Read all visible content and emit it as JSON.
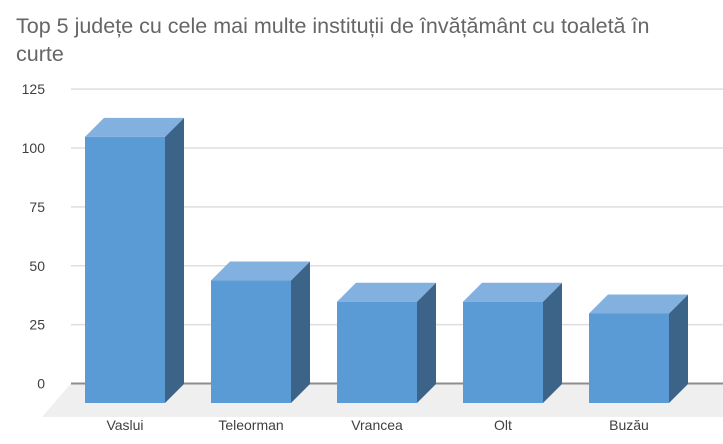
{
  "title_lines": {
    "line1": "Top 5 județe cu cele mai multe instituții de învățământ cu toaletă în",
    "line2": "curte"
  },
  "chart_data": {
    "type": "bar",
    "style": "3d-column",
    "title": "Top 5 județe cu cele mai multe instituții de învățământ cu toaletă în curte",
    "categories": [
      "Vaslui",
      "Teleorman",
      "Vrancea",
      "Olt",
      "Buzău"
    ],
    "values": [
      113,
      52,
      43,
      43,
      38
    ],
    "xlabel": "",
    "ylabel": "",
    "ylim": [
      0,
      125
    ],
    "yticks": [
      0,
      25,
      50,
      75,
      100,
      125
    ],
    "grid": true,
    "legend": false,
    "colors": {
      "bar_front": "#5B9BD5",
      "bar_top": "#82B0DF",
      "bar_side": "#3C6489",
      "floor": "#EFEFEF",
      "gridline": "#DEDEDE",
      "zero_line": "#8C8C8C",
      "axis_label": "#404040",
      "title": "#666666"
    }
  }
}
